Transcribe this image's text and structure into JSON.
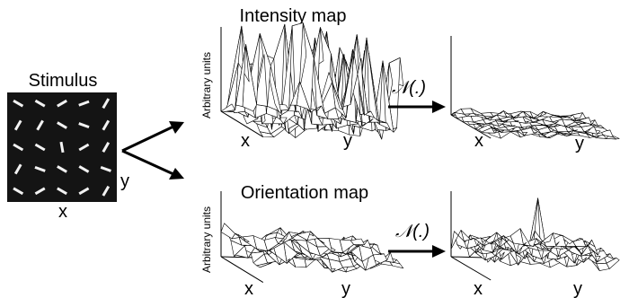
{
  "stimulus": {
    "title": "Stimulus",
    "x_label": "x",
    "y_label": "y",
    "bar_angles_deg": [
      [
        30,
        30,
        -30,
        -20,
        -60
      ],
      [
        -60,
        -60,
        30,
        20,
        -60
      ],
      [
        30,
        30,
        80,
        -30,
        -60
      ],
      [
        -60,
        20,
        30,
        30,
        20
      ],
      [
        30,
        -30,
        30,
        -30,
        -60
      ]
    ]
  },
  "maps": {
    "intensity": {
      "title": "Intensity map",
      "z_label": "Arbitrary units",
      "x_label": "x",
      "y_label": "y",
      "style": "sharp-spiky"
    },
    "intensity_normalized": {
      "x_label": "x",
      "y_label": "y",
      "style": "flat-low"
    },
    "orientation": {
      "title": "Orientation map",
      "z_label": "Arbitrary units",
      "x_label": "x",
      "y_label": "y",
      "style": "smooth-hills"
    },
    "orientation_normalized": {
      "x_label": "x",
      "y_label": "y",
      "style": "one-dominant-peak"
    }
  },
  "operator_label": "𝒩(.)",
  "colors": {
    "ink": "#000000",
    "stimulus_bg": "#141414",
    "bar": "#f2f2f2"
  }
}
